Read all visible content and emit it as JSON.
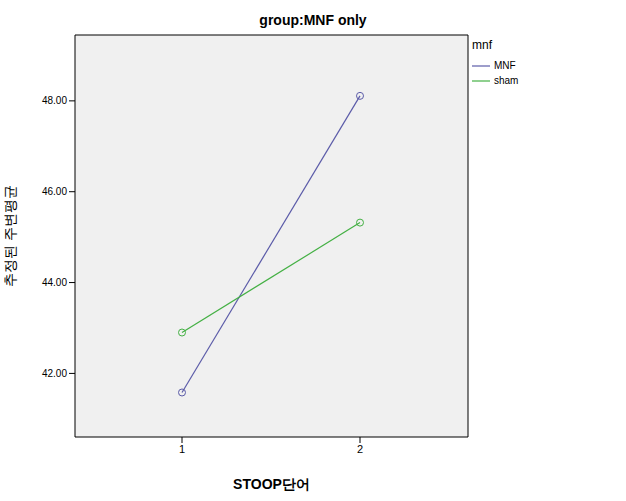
{
  "chart_data": {
    "type": "line",
    "title": "group:MNF only",
    "x_label": "STOOP단어",
    "y_label": "추정된 주변평균",
    "legend_title": "mnf",
    "legend": "right",
    "grid": false,
    "marker": "circle",
    "categories": [
      "1",
      "2"
    ],
    "series": [
      {
        "name": "MNF",
        "color": "#5b5ba8",
        "values": [
          41.58,
          48.11
        ]
      },
      {
        "name": "sham",
        "color": "#44b044",
        "values": [
          42.9,
          45.32
        ]
      }
    ],
    "ylim": [
      40.6,
      49.45
    ],
    "yticks": [
      {
        "value": 42,
        "label": "42.00"
      },
      {
        "value": 44,
        "label": "44.00"
      },
      {
        "value": 46,
        "label": "46.00"
      },
      {
        "value": 48,
        "label": "48.00"
      }
    ]
  }
}
